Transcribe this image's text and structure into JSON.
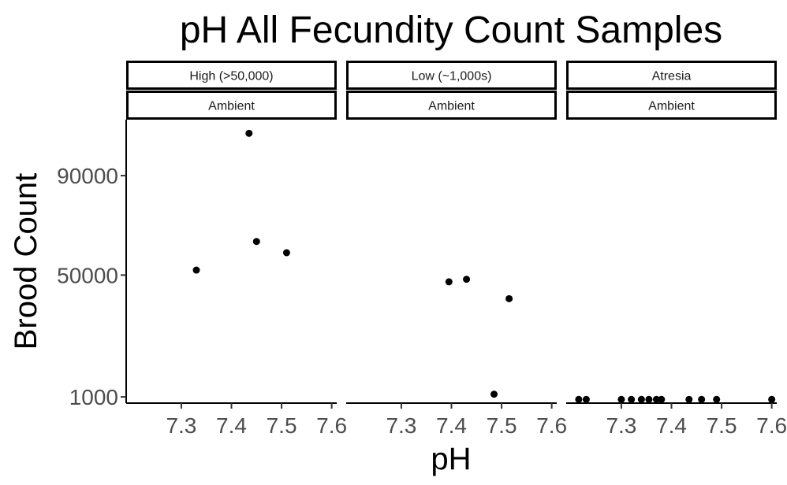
{
  "chart_data": {
    "type": "scatter",
    "title": "pH All Fecundity Count Samples",
    "xlabel": "pH",
    "ylabel": "Brood Count",
    "xlim": [
      7.19,
      7.61
    ],
    "ylim": [
      -1500,
      112500
    ],
    "x_ticks": [
      "7.3",
      "7.4",
      "7.5",
      "7.6"
    ],
    "y_ticks": [
      "1000",
      "50000",
      "90000"
    ],
    "grid": false,
    "panels": [
      {
        "strip_top": "High (>50,000)",
        "strip_bottom": "Ambient",
        "points": [
          {
            "x": 7.33,
            "y": 52000
          },
          {
            "x": 7.435,
            "y": 107000
          },
          {
            "x": 7.45,
            "y": 63500
          },
          {
            "x": 7.51,
            "y": 59000
          }
        ]
      },
      {
        "strip_top": "Low (~1,000s)",
        "strip_bottom": "Ambient",
        "points": [
          {
            "x": 7.395,
            "y": 47300
          },
          {
            "x": 7.43,
            "y": 48300
          },
          {
            "x": 7.485,
            "y": 2100
          },
          {
            "x": 7.515,
            "y": 40500
          }
        ]
      },
      {
        "strip_top": "Atresia",
        "strip_bottom": "Ambient",
        "points": [
          {
            "x": 7.215,
            "y": 0
          },
          {
            "x": 7.23,
            "y": 0
          },
          {
            "x": 7.3,
            "y": 0
          },
          {
            "x": 7.32,
            "y": 0
          },
          {
            "x": 7.34,
            "y": 0
          },
          {
            "x": 7.355,
            "y": 0
          },
          {
            "x": 7.37,
            "y": 0
          },
          {
            "x": 7.38,
            "y": 0
          },
          {
            "x": 7.435,
            "y": 0
          },
          {
            "x": 7.46,
            "y": 0
          },
          {
            "x": 7.49,
            "y": 0
          },
          {
            "x": 7.6,
            "y": 0
          }
        ]
      }
    ]
  }
}
